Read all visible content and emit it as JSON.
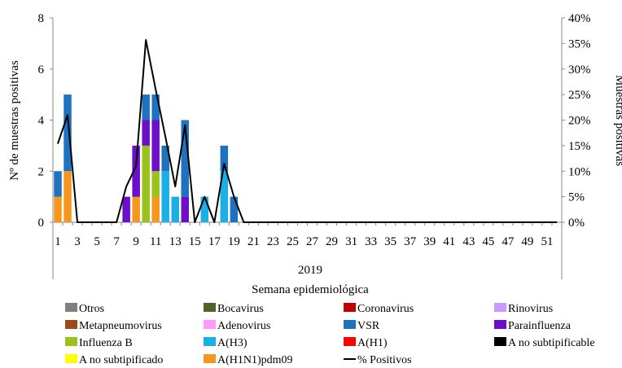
{
  "chart_data": {
    "type": "bar",
    "stacked": true,
    "xlabel": "Semana epidemiológica",
    "year_label": "2019",
    "ylabel": "Nº de muestras positivas",
    "y2label": "Muestras positivas",
    "ylim": [
      0,
      8
    ],
    "yticks": [
      "0",
      "2",
      "4",
      "6",
      "8"
    ],
    "y2lim": [
      0,
      40
    ],
    "y2ticks": [
      "0%",
      "5%",
      "10%",
      "15%",
      "20%",
      "25%",
      "30%",
      "35%",
      "40%"
    ],
    "categories": [
      1,
      2,
      3,
      4,
      5,
      6,
      7,
      8,
      9,
      10,
      11,
      12,
      13,
      14,
      15,
      16,
      17,
      18,
      19,
      20,
      21,
      22,
      23,
      24,
      25,
      26,
      27,
      28,
      29,
      30,
      31,
      32,
      33,
      34,
      35,
      36,
      37,
      38,
      39,
      40,
      41,
      42,
      43,
      44,
      45,
      46,
      47,
      48,
      49,
      50,
      51,
      52
    ],
    "xtick_labels": [
      "1",
      "3",
      "5",
      "7",
      "9",
      "11",
      "13",
      "15",
      "17",
      "19",
      "21",
      "23",
      "25",
      "27",
      "29",
      "31",
      "33",
      "35",
      "37",
      "39",
      "41",
      "43",
      "45",
      "47",
      "49",
      "51"
    ],
    "series": [
      {
        "name": "A(H1N1)pdm09",
        "color": "#f5961f",
        "values": [
          1,
          2,
          0,
          0,
          0,
          0,
          0,
          0,
          1,
          0,
          1,
          0,
          0,
          0,
          0,
          0,
          0,
          0,
          0,
          0,
          0,
          0,
          0,
          0,
          0,
          0,
          0,
          0,
          0,
          0,
          0,
          0,
          0,
          0,
          0,
          0,
          0,
          0,
          0,
          0,
          0,
          0,
          0,
          0,
          0,
          0,
          0,
          0,
          0,
          0,
          0,
          0
        ]
      },
      {
        "name": "Influenza  B",
        "color": "#99c31c",
        "values": [
          0,
          0,
          0,
          0,
          0,
          0,
          0,
          0,
          0,
          3,
          1,
          0,
          0,
          0,
          0,
          0,
          0,
          0,
          0,
          0,
          0,
          0,
          0,
          0,
          0,
          0,
          0,
          0,
          0,
          0,
          0,
          0,
          0,
          0,
          0,
          0,
          0,
          0,
          0,
          0,
          0,
          0,
          0,
          0,
          0,
          0,
          0,
          0,
          0,
          0,
          0,
          0
        ]
      },
      {
        "name": "A(H3)",
        "color": "#1ab0e6",
        "values": [
          0,
          0,
          0,
          0,
          0,
          0,
          0,
          0,
          0,
          0,
          0,
          2,
          1,
          0,
          0,
          1,
          0,
          2,
          0,
          0,
          0,
          0,
          0,
          0,
          0,
          0,
          0,
          0,
          0,
          0,
          0,
          0,
          0,
          0,
          0,
          0,
          0,
          0,
          0,
          0,
          0,
          0,
          0,
          0,
          0,
          0,
          0,
          0,
          0,
          0,
          0,
          0
        ]
      },
      {
        "name": "Parainfluenza",
        "color": "#6b0fc9",
        "values": [
          0,
          0,
          0,
          0,
          0,
          0,
          0,
          1,
          2,
          1,
          2,
          0,
          0,
          1,
          0,
          0,
          0,
          0,
          0,
          0,
          0,
          0,
          0,
          0,
          0,
          0,
          0,
          0,
          0,
          0,
          0,
          0,
          0,
          0,
          0,
          0,
          0,
          0,
          0,
          0,
          0,
          0,
          0,
          0,
          0,
          0,
          0,
          0,
          0,
          0,
          0,
          0
        ]
      },
      {
        "name": "VSR",
        "color": "#1f72bd",
        "values": [
          1,
          3,
          0,
          0,
          0,
          0,
          0,
          0,
          0,
          1,
          1,
          1,
          0,
          3,
          0,
          0,
          0,
          1,
          1,
          0,
          0,
          0,
          0,
          0,
          0,
          0,
          0,
          0,
          0,
          0,
          0,
          0,
          0,
          0,
          0,
          0,
          0,
          0,
          0,
          0,
          0,
          0,
          0,
          0,
          0,
          0,
          0,
          0,
          0,
          0,
          0,
          0
        ]
      }
    ],
    "line": {
      "name": "% Positivos",
      "color": "#000000",
      "values": [
        15.4,
        21,
        0,
        0,
        0,
        0,
        0,
        7,
        11,
        35.7,
        26,
        16.7,
        7,
        19,
        0,
        5,
        0,
        11.5,
        5,
        0,
        0,
        0,
        0,
        0,
        0,
        0,
        0,
        0,
        0,
        0,
        0,
        0,
        0,
        0,
        0,
        0,
        0,
        0,
        0,
        0,
        0,
        0,
        0,
        0,
        0,
        0,
        0,
        0,
        0,
        0,
        0,
        0
      ]
    },
    "legend": [
      {
        "name": "Otros",
        "color": "#808080"
      },
      {
        "name": "Bocavirus",
        "color": "#4f6228"
      },
      {
        "name": "Coronavirus",
        "color": "#c00000"
      },
      {
        "name": "Rinovirus",
        "color": "#cc99ff"
      },
      {
        "name": "Metapneumovirus",
        "color": "#9c4a17"
      },
      {
        "name": "Adenovirus",
        "color": "#ff99ff"
      },
      {
        "name": "VSR",
        "color": "#1f72bd"
      },
      {
        "name": "Parainfluenza",
        "color": "#6b0fc9"
      },
      {
        "name": "Influenza  B",
        "color": "#99c31c"
      },
      {
        "name": "A(H3)",
        "color": "#1ab0e6"
      },
      {
        "name": "A(H1)",
        "color": "#ff0000"
      },
      {
        "name": "A no subtipificable",
        "color": "#000000"
      },
      {
        "name": "A no subtipificado",
        "color": "#ffff00"
      },
      {
        "name": "A(H1N1)pdm09",
        "color": "#f5961f"
      },
      {
        "name": "% Positivos",
        "color": "#000000",
        "is_line": true
      }
    ]
  }
}
